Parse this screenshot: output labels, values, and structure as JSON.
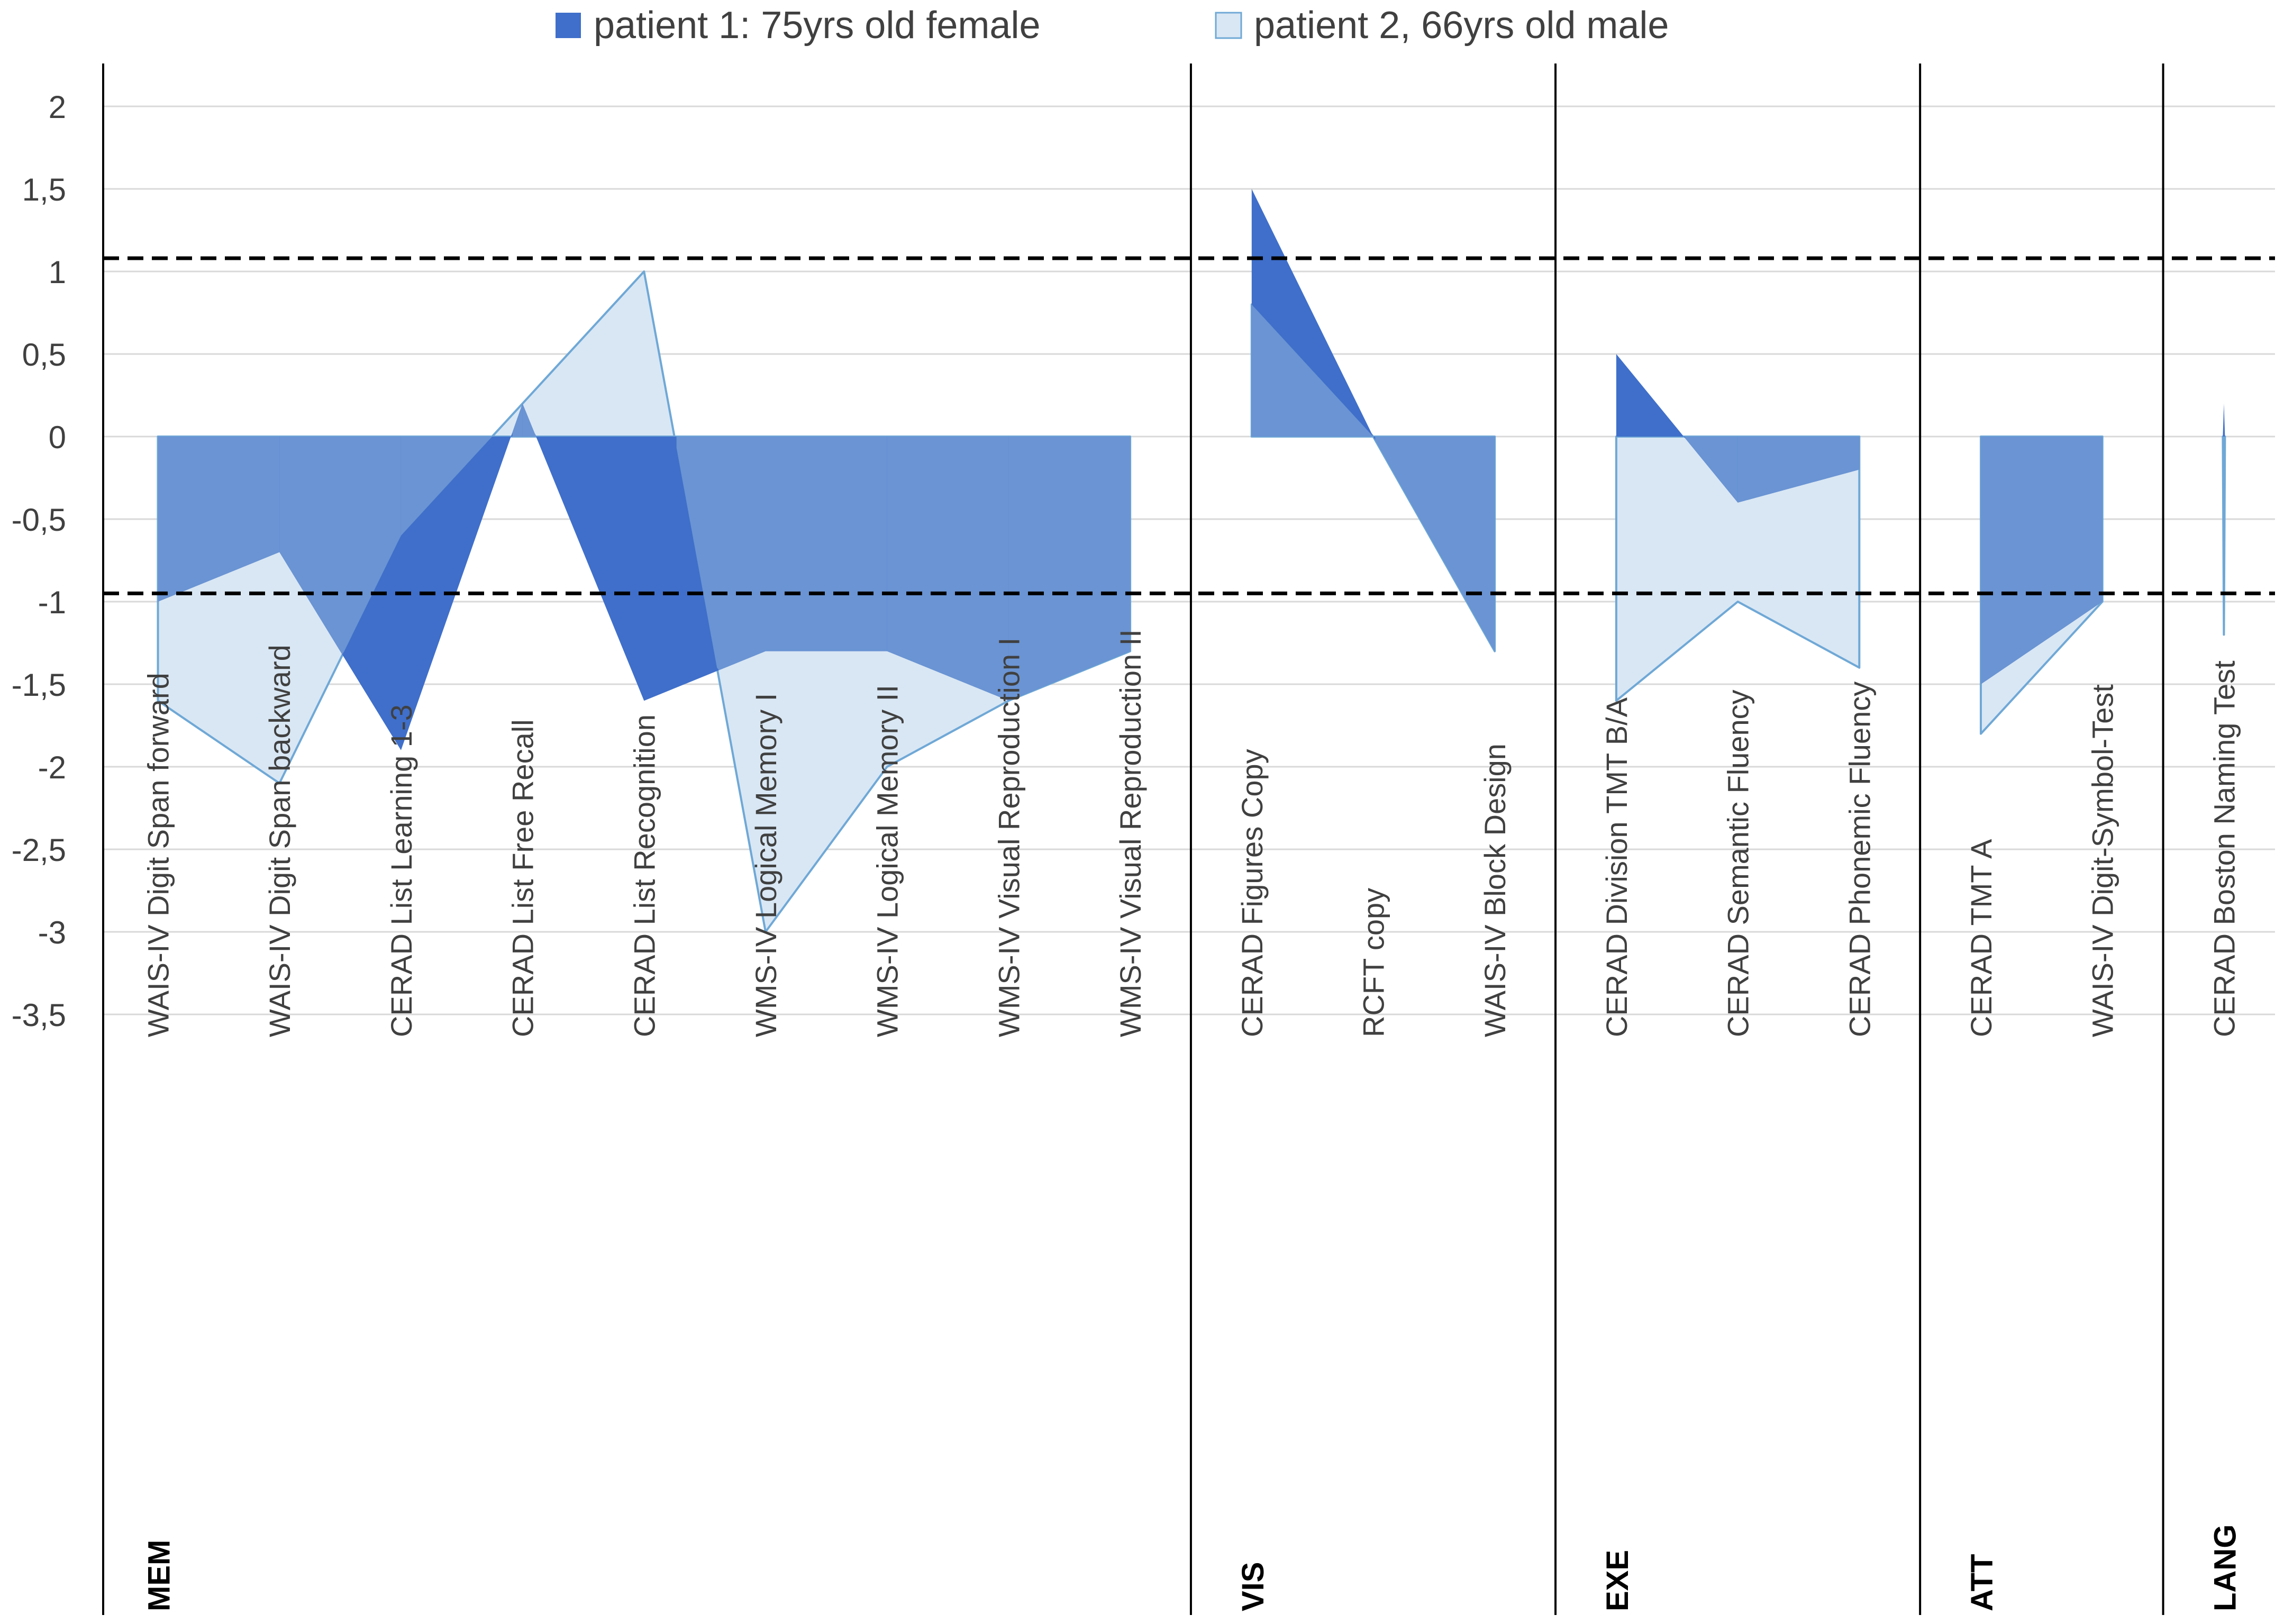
{
  "chart_data": {
    "type": "area",
    "title": "",
    "xlabel": "",
    "ylabel": "",
    "ylim": [
      -3.5,
      2.25
    ],
    "yticks": [
      "2",
      "1,5",
      "1",
      "0,5",
      "0",
      "-0,5",
      "-1",
      "-1,5",
      "-2",
      "-2,5",
      "-3",
      "-3,5"
    ],
    "ytick_values": [
      2,
      1.5,
      1,
      0.5,
      0,
      -0.5,
      -1,
      -1.5,
      -2,
      -2.5,
      -3,
      -3.5
    ],
    "grid": true,
    "legend_position": "top-center",
    "categories": [
      "WAIS-IV Digit Span forward",
      "WAIS-IV Digit Span backward",
      "CERAD List Learning 1-3",
      "CERAD List Free Recall",
      "CERAD List Recognition",
      "WMS-IV Logical Memory I",
      "WMS-IV Logical Memory II",
      "WMS-IV Visual Reproduction I",
      "WMS-IV Visual Reproduction II",
      "CERAD Figures Copy",
      "RCFT copy",
      "WAIS-IV  Block Design",
      "CERAD Division TMT B/A",
      "CERAD Semantic Fluency",
      "CERAD Phonemic Fluency",
      "CERAD TMT A",
      "WAIS-IV Digit-Symbol-Test",
      "CERAD Boston Naming Test"
    ],
    "domains": [
      {
        "label": "MEM",
        "start": 0,
        "end": 8
      },
      {
        "label": "VIS",
        "start": 9,
        "end": 11
      },
      {
        "label": "EXE",
        "start": 12,
        "end": 14
      },
      {
        "label": "ATT",
        "start": 15,
        "end": 16
      },
      {
        "label": "LANG",
        "start": 17,
        "end": 17
      }
    ],
    "series": [
      {
        "name": "patient 1: 75yrs old female",
        "color": "#3f6fca",
        "segments": [
          [
            -1.0,
            -0.7,
            -1.9,
            0.2,
            -1.6,
            -1.3,
            -1.3,
            -1.6,
            -1.3
          ],
          [
            1.5,
            0.0,
            -1.3
          ],
          [
            0.5,
            -0.4,
            -0.2
          ],
          [
            -1.5,
            -1.0
          ],
          [
            0.2
          ]
        ]
      },
      {
        "name": "patient 2, 66yrs old male",
        "color": "#d9e7f4",
        "segments": [
          [
            -1.6,
            -2.1,
            -0.6,
            0.2,
            1.0,
            -3.0,
            -2.0,
            -1.6,
            -1.3
          ],
          [
            0.8,
            0.0,
            -1.3
          ],
          [
            -1.6,
            -1.0,
            -1.4
          ],
          [
            -1.8,
            -1.0
          ],
          [
            -1.2
          ]
        ]
      }
    ],
    "overlap_color": "#6a94d3",
    "series2_stroke": "#6fa8d6",
    "reference_lines": [
      1.08,
      -0.95
    ]
  }
}
